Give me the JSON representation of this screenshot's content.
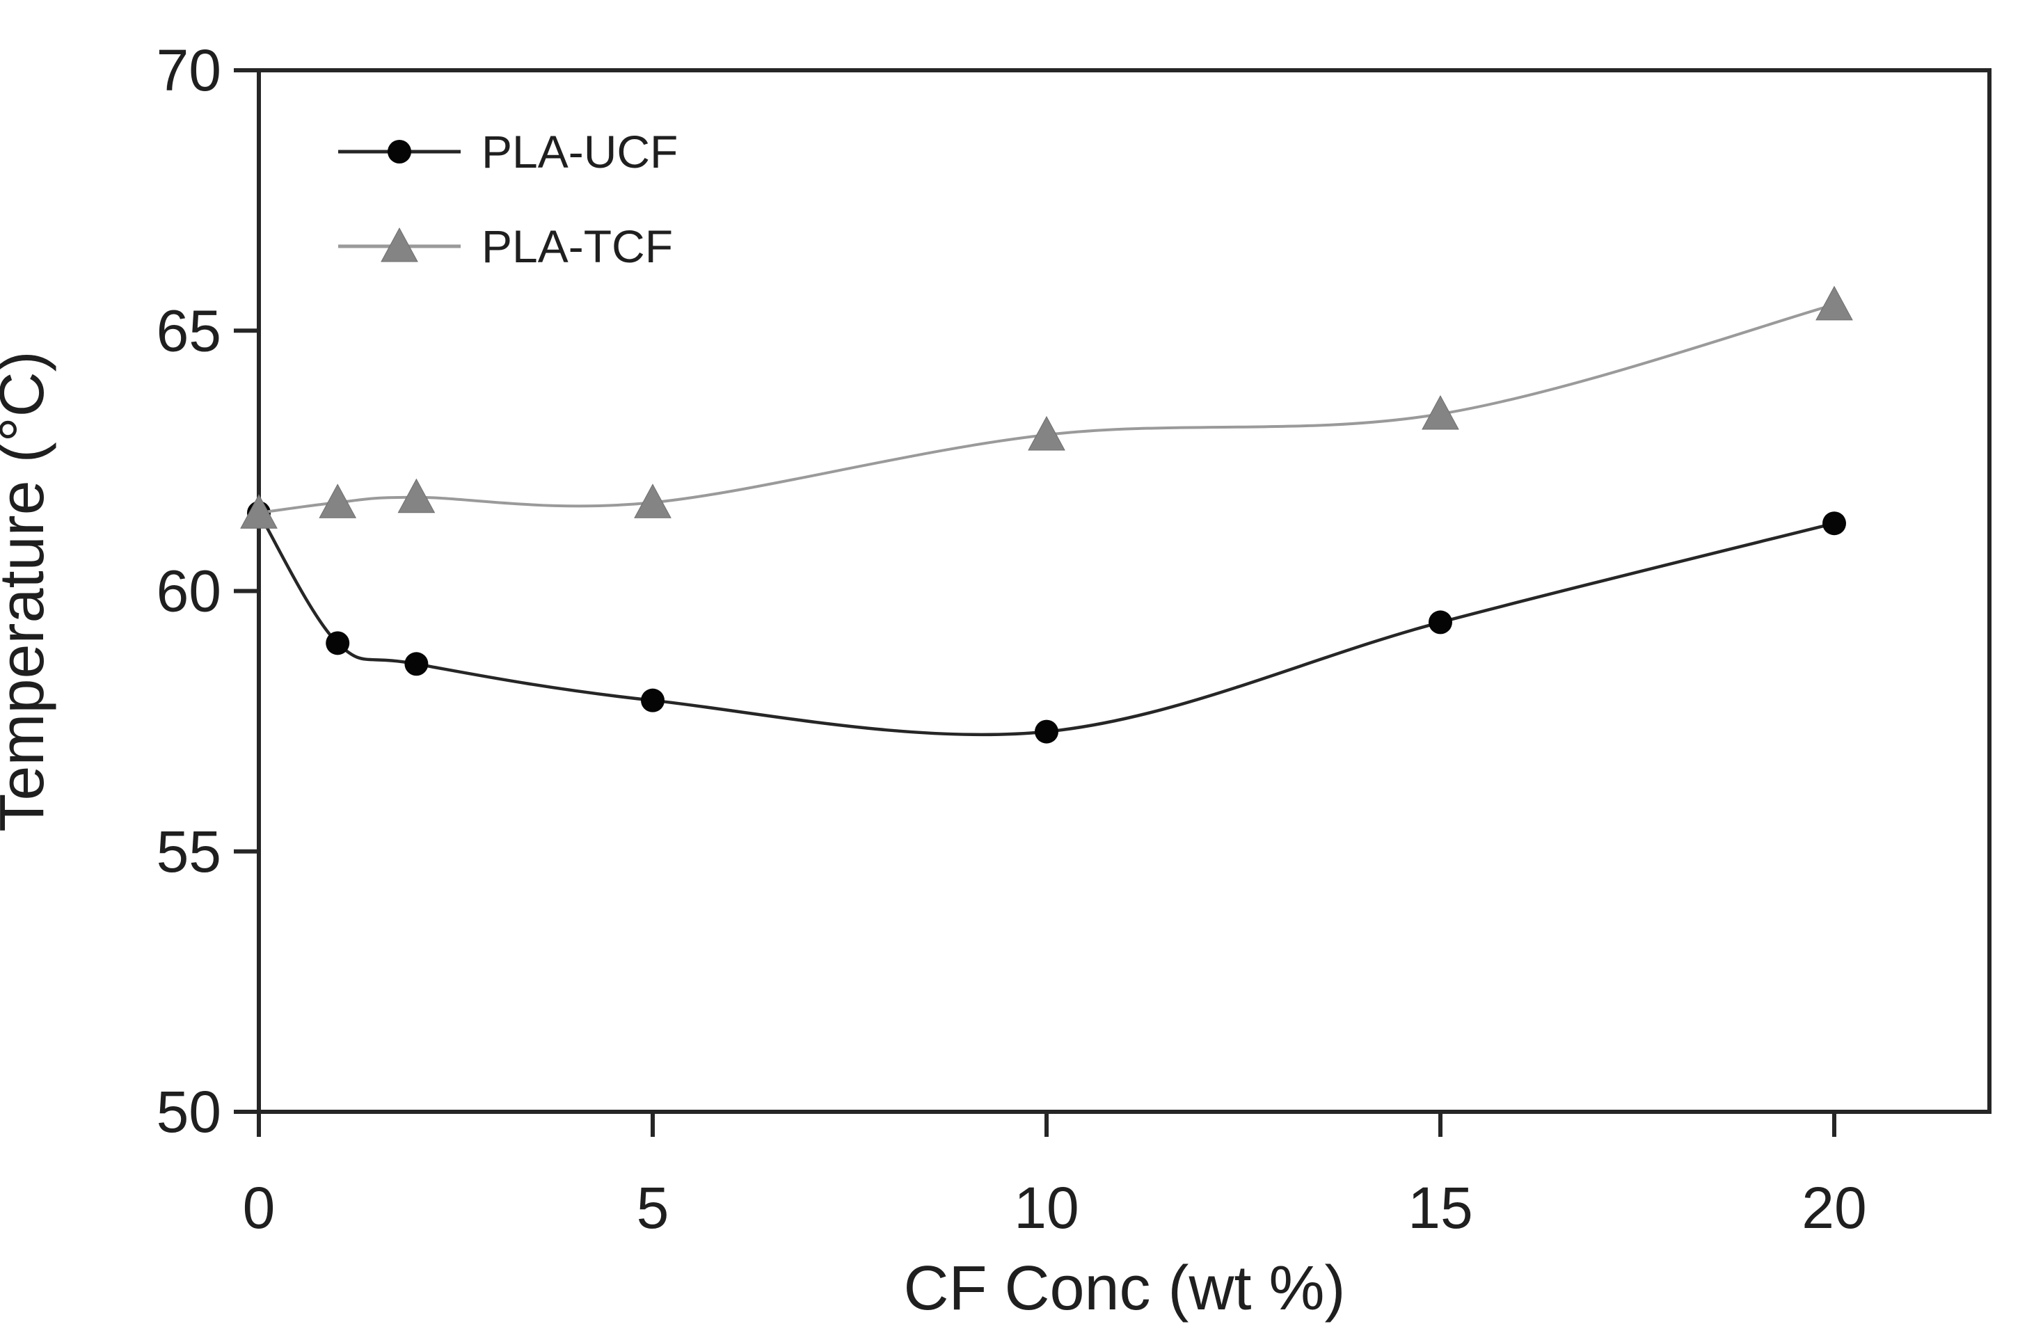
{
  "chart_data": {
    "type": "line",
    "x": [
      0,
      1,
      2,
      5,
      10,
      15,
      20
    ],
    "series": [
      {
        "name": "PLA-UCF",
        "values": [
          61.5,
          59.0,
          58.6,
          57.9,
          57.3,
          59.4,
          61.3
        ],
        "line_color": "#262626",
        "marker": "circle",
        "marker_color": "#050505",
        "line_width": 4.5
      },
      {
        "name": "PLA-TCF",
        "values": [
          61.5,
          61.7,
          61.8,
          61.7,
          63.0,
          63.4,
          65.5
        ],
        "line_color": "#9a9a9a",
        "marker": "triangle",
        "marker_color": "#848484",
        "line_width": 4
      }
    ],
    "title": "",
    "xlabel": "CF Conc (wt %)",
    "ylabel": "Temperature (°C)",
    "xlim": [
      0,
      22
    ],
    "ylim": [
      50,
      70
    ],
    "xticks": [
      0,
      5,
      10,
      15,
      20
    ],
    "yticks": [
      50,
      55,
      60,
      65,
      70
    ],
    "grid": false,
    "legend_position": "top-left-inside",
    "axis_color": "#262626",
    "text_color": "#1f1f1f"
  }
}
